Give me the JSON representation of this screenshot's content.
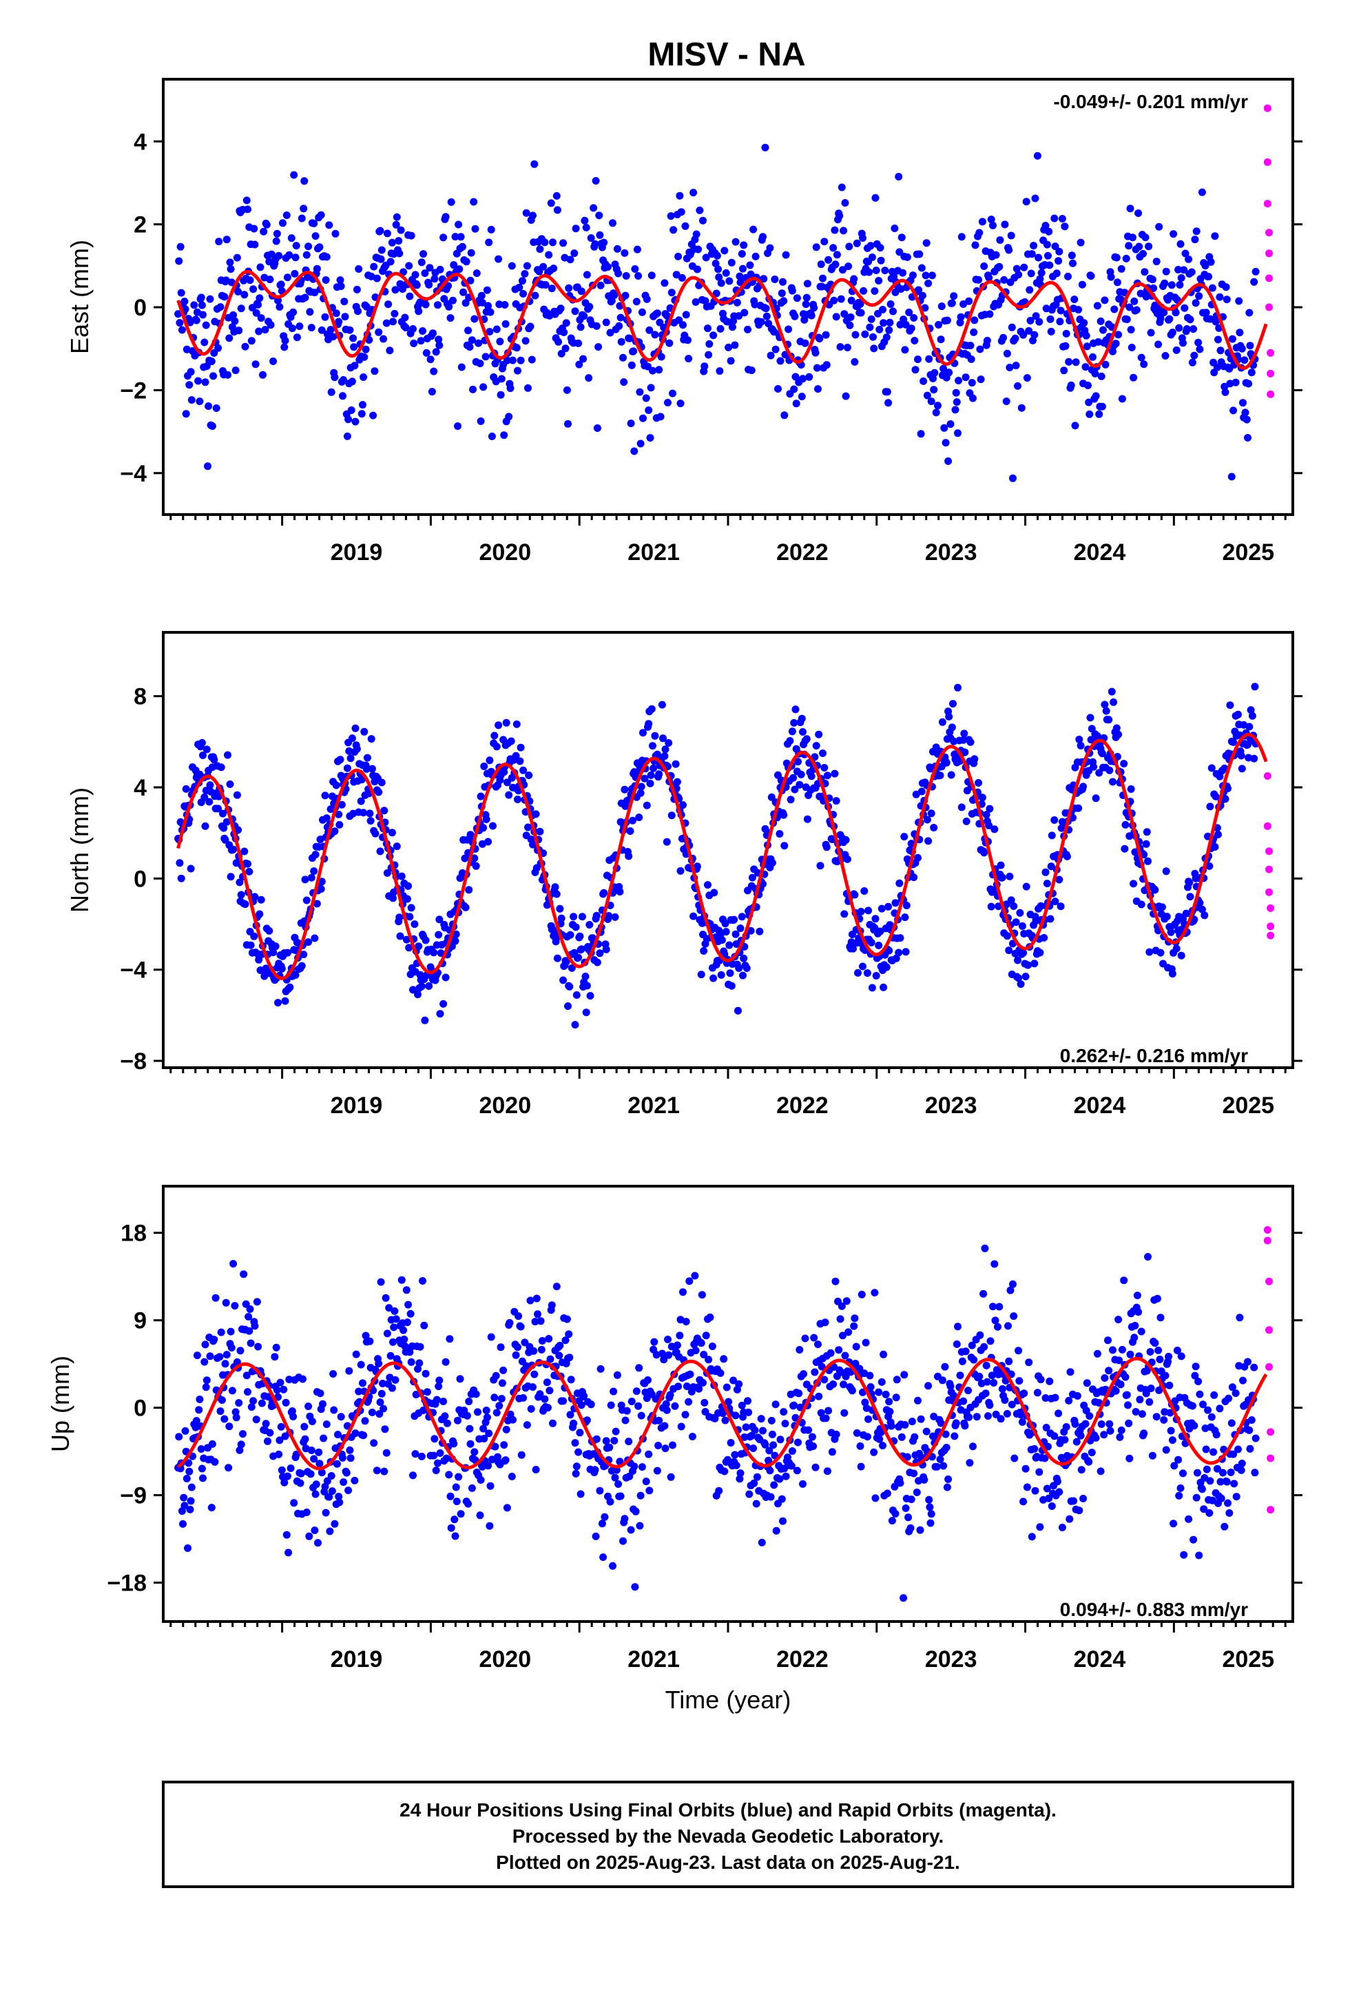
{
  "title": "MISV - NA",
  "chart_data": [
    {
      "type": "scatter",
      "ylabel": "East (mm)",
      "xlabel": "",
      "xlim": [
        2018.2,
        2025.8
      ],
      "ylim": [
        -5,
        5.5
      ],
      "yticks": [
        -4,
        -2,
        0,
        2,
        4
      ],
      "yticklabels": [
        "−4",
        "−2",
        "0",
        "2",
        "4"
      ],
      "xticks": [
        2019,
        2020,
        2021,
        2022,
        2023,
        2024,
        2025
      ],
      "xticklabels": [
        "2019",
        "2020",
        "2021",
        "2022",
        "2023",
        "2024",
        "2025"
      ],
      "rate_text": "-0.049+/- 0.201 mm/yr",
      "rate_position": "top-right",
      "series": [
        {
          "type": "final_orbit_points",
          "color": "#0000ff",
          "x_start": 2018.3,
          "x_end": 2025.55,
          "count": 1350,
          "trend": -0.049,
          "annual_amplitude": 0.7,
          "semiannual_amplitude": 0.6,
          "scatter_sd": 1.05
        },
        {
          "type": "rapid_orbit_points",
          "color": "#ff00ff",
          "x": [
            2025.63,
            2025.63,
            2025.63,
            2025.64,
            2025.64,
            2025.64,
            2025.64,
            2025.65,
            2025.65,
            2025.65
          ],
          "y": [
            4.8,
            3.5,
            2.5,
            1.8,
            1.3,
            0.7,
            0.0,
            -1.1,
            -1.6,
            -2.1
          ]
        },
        {
          "type": "model_curve",
          "color": "#ff0000",
          "x_start": 2018.3,
          "x_end": 2025.62,
          "trend": -0.049,
          "offset": 0.0,
          "annual_amplitude": 0.7,
          "annual_peak": 0.97,
          "semiannual_amplitude": 0.6,
          "semiannual_peak": 0.22
        }
      ]
    },
    {
      "type": "scatter",
      "ylabel": "North (mm)",
      "xlabel": "",
      "xlim": [
        2018.2,
        2025.8
      ],
      "ylim": [
        -8.3,
        10.8
      ],
      "yticks": [
        -8,
        -4,
        0,
        4,
        8
      ],
      "yticklabels": [
        "−8",
        "−4",
        "0",
        "4",
        "8"
      ],
      "xticks": [
        2019,
        2020,
        2021,
        2022,
        2023,
        2024,
        2025
      ],
      "xticklabels": [
        "2019",
        "2020",
        "2021",
        "2022",
        "2023",
        "2024",
        "2025"
      ],
      "rate_text": "0.262+/- 0.216 mm/yr",
      "rate_position": "bottom-right",
      "series": [
        {
          "type": "final_orbit_points",
          "color": "#0000ff",
          "x_start": 2018.3,
          "x_end": 2025.55,
          "count": 1350,
          "trend": 0.262,
          "annual_amplitude": 4.5,
          "scatter_sd": 1.0
        },
        {
          "type": "rapid_orbit_points",
          "color": "#ff00ff",
          "x": [
            2025.63,
            2025.63,
            2025.64,
            2025.64,
            2025.64,
            2025.65,
            2025.65,
            2025.65
          ],
          "y": [
            4.5,
            2.3,
            1.2,
            0.4,
            -0.6,
            -1.3,
            -2.1,
            -2.5
          ]
        },
        {
          "type": "model_curve",
          "color": "#ff0000",
          "x_start": 2018.3,
          "x_end": 2025.62,
          "trend": 0.262,
          "offset": 0.9,
          "annual_amplitude": 4.5,
          "annual_peak": 0.5
        }
      ]
    },
    {
      "type": "scatter",
      "ylabel": "Up (mm)",
      "xlabel": "Time (year)",
      "xlim": [
        2018.2,
        2025.8
      ],
      "ylim": [
        -22,
        22.8
      ],
      "yticks": [
        -18,
        -9,
        0,
        9,
        18
      ],
      "yticklabels": [
        "−18",
        "−9",
        "0",
        "9",
        "18"
      ],
      "xticks": [
        2019,
        2020,
        2021,
        2022,
        2023,
        2024,
        2025
      ],
      "xticklabels": [
        "2019",
        "2020",
        "2021",
        "2022",
        "2023",
        "2024",
        "2025"
      ],
      "rate_text": "0.094+/- 0.883 mm/yr",
      "rate_position": "bottom-right",
      "series": [
        {
          "type": "final_orbit_points",
          "color": "#0000ff",
          "x_start": 2018.3,
          "x_end": 2025.55,
          "count": 1350,
          "trend": 0.094,
          "annual_amplitude": 5.5,
          "scatter_sd": 4.2
        },
        {
          "type": "rapid_orbit_points",
          "color": "#ff00ff",
          "x": [
            2025.63,
            2025.63,
            2025.64,
            2025.64,
            2025.64,
            2025.65,
            2025.65,
            2025.65
          ],
          "y": [
            18.3,
            17.2,
            13.0,
            8.0,
            4.2,
            -2.5,
            -5.2,
            -10.5
          ]
        },
        {
          "type": "model_curve",
          "color": "#ff0000",
          "x_start": 2018.3,
          "x_end": 2025.62,
          "trend": 0.094,
          "offset": -0.6,
          "annual_amplitude": 5.4,
          "annual_peak": 0.75
        }
      ]
    }
  ],
  "footer": {
    "line1": "24 Hour Positions Using Final Orbits (blue) and Rapid Orbits (magenta).",
    "line2": "Processed by the Nevada Geodetic Laboratory.",
    "line3": "Plotted on 2025-Aug-23. Last data on 2025-Aug-21."
  }
}
